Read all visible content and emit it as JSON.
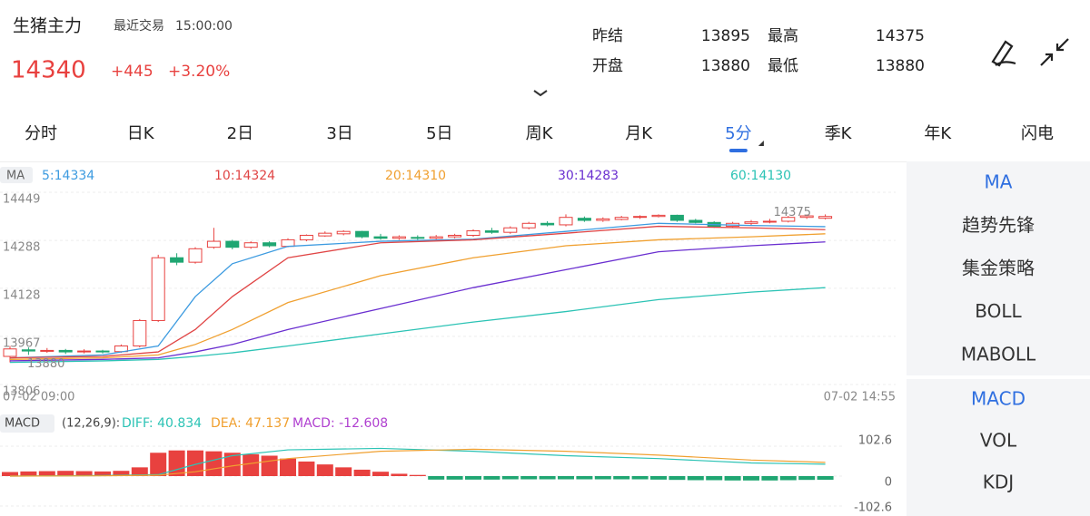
{
  "header": {
    "title": "生猪主力",
    "trade_label": "最近交易",
    "trade_time": "15:00:00",
    "price": 14340,
    "change": "+445",
    "change_pct": "+3.20%",
    "stats": [
      {
        "label": "昨结",
        "value": 13895
      },
      {
        "label": "最高",
        "value": 14375
      },
      {
        "label": "开盘",
        "value": 13880
      },
      {
        "label": "最低",
        "value": 13880
      }
    ]
  },
  "tabs": [
    "分时",
    "日K",
    "2日",
    "3日",
    "5日",
    "周K",
    "月K",
    "5分",
    "季K",
    "年K",
    "闪电"
  ],
  "active_tab": 7,
  "side_menu": {
    "main": [
      "MA",
      "趋势先锋",
      "集金策略",
      "BOLL",
      "MABOLL"
    ],
    "sub": [
      "MACD",
      "VOL",
      "KDJ"
    ]
  },
  "chart_data": {
    "type": "candlestick",
    "legend_title": "MA",
    "ma_labels": [
      "5:14334",
      "10:14324",
      "20:14310",
      "30:14283",
      "60:14130"
    ],
    "ylim": [
      13806,
      14449
    ],
    "yticks": [
      14449,
      14288,
      14128,
      13967,
      13806
    ],
    "x_start": "07-02 09:00",
    "x_end": "07-02 14:55",
    "high_label": 14375,
    "low_label": 13880,
    "open": [
      13900,
      13922,
      13918,
      13920,
      13915,
      13918,
      13916,
      13935,
      14020,
      14230,
      14215,
      14265,
      14285,
      14265,
      14280,
      14268,
      14290,
      14303,
      14310,
      14318,
      14300,
      14295,
      14298,
      14295,
      14300,
      14305,
      14320,
      14315,
      14330,
      14345,
      14340,
      14362,
      14355,
      14358,
      14365,
      14368,
      14372,
      14355,
      14348,
      14335,
      14345,
      14350,
      14352,
      14365,
      14362
    ],
    "close": [
      13925,
      13918,
      13920,
      13915,
      13918,
      13916,
      13935,
      14020,
      14230,
      14215,
      14260,
      14285,
      14265,
      14280,
      14270,
      14290,
      14305,
      14312,
      14318,
      14300,
      14295,
      14300,
      14295,
      14300,
      14305,
      14320,
      14315,
      14330,
      14345,
      14340,
      14365,
      14355,
      14360,
      14365,
      14368,
      14372,
      14355,
      14348,
      14335,
      14345,
      14350,
      14352,
      14365,
      14370,
      14368
    ],
    "high": [
      13935,
      13930,
      13928,
      13925,
      13924,
      13922,
      13940,
      14025,
      14240,
      14245,
      14265,
      14330,
      14290,
      14285,
      14285,
      14295,
      14308,
      14318,
      14322,
      14320,
      14310,
      14305,
      14305,
      14306,
      14310,
      14325,
      14330,
      14335,
      14350,
      14352,
      14375,
      14368,
      14365,
      14370,
      14372,
      14375,
      14374,
      14360,
      14352,
      14350,
      14356,
      14360,
      14370,
      14375,
      14375
    ],
    "low": [
      13880,
      13905,
      13912,
      13908,
      13910,
      13910,
      13912,
      13930,
      14015,
      14205,
      14210,
      14260,
      14258,
      14260,
      14265,
      14265,
      14285,
      14300,
      14305,
      14295,
      14290,
      14290,
      14290,
      14290,
      14295,
      14300,
      14310,
      14310,
      14325,
      14335,
      14335,
      14350,
      14350,
      14355,
      14360,
      14365,
      14350,
      14345,
      14330,
      14330,
      14340,
      14345,
      14348,
      14360,
      14358
    ],
    "ma_x": [
      0,
      5,
      8,
      10,
      12,
      15,
      20,
      25,
      30,
      35,
      40,
      44
    ],
    "series": [
      {
        "name": "MA5",
        "color": "#3d9be0",
        "values": [
          13895,
          13905,
          13935,
          14100,
          14210,
          14268,
          14285,
          14292,
          14318,
          14345,
          14338,
          14334
        ]
      },
      {
        "name": "MA10",
        "color": "#e04545",
        "values": [
          13895,
          13900,
          13915,
          13990,
          14100,
          14230,
          14280,
          14290,
          14312,
          14335,
          14330,
          14324
        ]
      },
      {
        "name": "MA20",
        "color": "#f0a030",
        "values": [
          13890,
          13895,
          13905,
          13940,
          13990,
          14080,
          14170,
          14230,
          14270,
          14290,
          14300,
          14310
        ]
      },
      {
        "name": "MA30",
        "color": "#6a2fd0",
        "values": [
          13885,
          13890,
          13895,
          13915,
          13940,
          13990,
          14060,
          14130,
          14190,
          14250,
          14270,
          14283
        ]
      },
      {
        "name": "MA60",
        "color": "#2cc3b5",
        "values": [
          13880,
          13885,
          13890,
          13900,
          13912,
          13935,
          13975,
          14015,
          14050,
          14090,
          14115,
          14130
        ]
      }
    ]
  },
  "macd_data": {
    "type": "bar",
    "title": "MACD",
    "params": "(12,26,9):",
    "diff_label": "DIFF: 40.834",
    "dea_label": "DEA: 47.137",
    "macd_label": "MACD: -12.608",
    "ylim": [
      -102.6,
      102.6
    ],
    "yticks": [
      102.6,
      0,
      -102.6
    ],
    "values": [
      14,
      16,
      17,
      18,
      17,
      16,
      18,
      30,
      80,
      88,
      88,
      85,
      80,
      75,
      70,
      60,
      50,
      40,
      30,
      22,
      15,
      8,
      4,
      -12,
      -12,
      -12,
      -12,
      -11,
      -11,
      -11,
      -11,
      -11,
      -11,
      -11,
      -11,
      -12,
      -13,
      -14,
      -14,
      -15,
      -15,
      -15,
      -14,
      -13,
      -12.608
    ],
    "line_x": [
      0,
      5,
      8,
      10,
      12,
      15,
      20,
      25,
      30,
      35,
      40,
      44
    ],
    "series": [
      {
        "name": "DIFF",
        "color": "#2cc3b5",
        "values": [
          0,
          2,
          5,
          40,
          70,
          90,
          95,
          85,
          70,
          60,
          45,
          40.834
        ]
      },
      {
        "name": "DEA",
        "color": "#f0a030",
        "values": [
          0,
          1,
          3,
          15,
          35,
          60,
          85,
          92,
          85,
          72,
          55,
          47.137
        ]
      }
    ]
  }
}
